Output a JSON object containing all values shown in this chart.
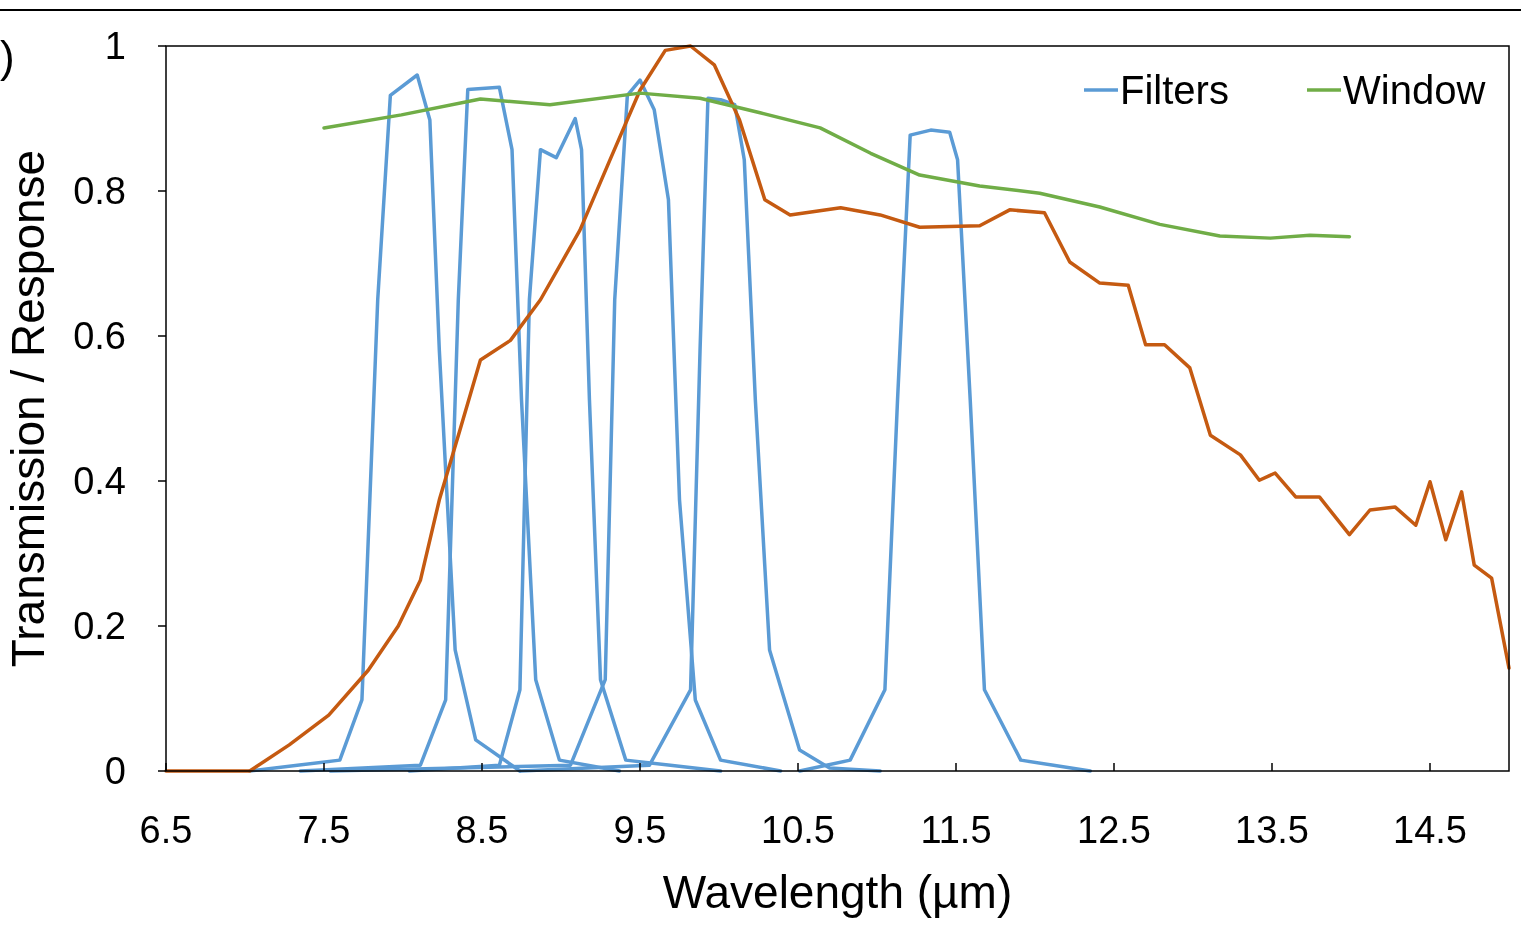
{
  "chart_data": {
    "type": "line",
    "xlabel": "Wavelength (µm)",
    "ylabel": "Transmission / Response",
    "annotations": [
      ")"
    ],
    "xlim": [
      6.5,
      15
    ],
    "xticks": [
      6.5,
      7.5,
      8.5,
      9.5,
      10.5,
      11.5,
      12.5,
      13.5,
      14.5
    ],
    "ylim": [
      0,
      1
    ],
    "yticks": [
      0,
      0.2,
      0.4,
      0.6,
      0.8,
      1
    ],
    "grid": false,
    "legend": "top right",
    "marker": "none",
    "line_style": "solid",
    "series": [
      {
        "name": "Filters",
        "color": "#5b9bd5",
        "x": [
          7.03,
          7.6,
          7.74,
          7.84,
          7.92,
          8.09,
          8.17,
          8.23,
          8.33,
          8.46,
          8.74
        ],
        "values": [
          0,
          0.015,
          0.098,
          0.65,
          0.932,
          0.96,
          0.898,
          0.58,
          0.167,
          0.043,
          0
        ]
      },
      {
        "color": "#5b9bd5",
        "x": [
          7.35,
          8.11,
          8.27,
          8.35,
          8.41,
          8.61,
          8.69,
          8.75,
          8.84,
          8.99,
          9.37
        ],
        "values": [
          0,
          0.008,
          0.098,
          0.65,
          0.94,
          0.943,
          0.857,
          0.512,
          0.126,
          0.015,
          0
        ]
      },
      {
        "color": "#5b9bd5",
        "x": [
          8.04,
          8.61,
          8.74,
          8.8,
          8.87,
          8.97,
          9.09,
          9.13,
          9.18,
          9.25,
          9.41,
          10.01
        ],
        "values": [
          0,
          0.008,
          0.112,
          0.65,
          0.857,
          0.846,
          0.9,
          0.857,
          0.512,
          0.126,
          0.015,
          0
        ]
      },
      {
        "color": "#5b9bd5",
        "x": [
          7.54,
          9.06,
          9.28,
          9.34,
          9.42,
          9.5,
          9.59,
          9.68,
          9.75,
          9.85,
          10.01,
          10.39
        ],
        "values": [
          0,
          0.008,
          0.126,
          0.65,
          0.932,
          0.953,
          0.912,
          0.788,
          0.374,
          0.098,
          0.015,
          0
        ]
      },
      {
        "color": "#5b9bd5",
        "x": [
          8.74,
          9.56,
          9.82,
          9.88,
          9.93,
          10.01,
          10.1,
          10.16,
          10.23,
          10.32,
          10.51,
          10.7,
          11.02
        ],
        "values": [
          0,
          0.008,
          0.112,
          0.58,
          0.928,
          0.926,
          0.919,
          0.843,
          0.512,
          0.167,
          0.029,
          0.004,
          0
        ]
      },
      {
        "color": "#5b9bd5",
        "x": [
          10.51,
          10.83,
          11.05,
          11.13,
          11.21,
          11.34,
          11.46,
          11.51,
          11.59,
          11.68,
          11.91,
          12.35
        ],
        "values": [
          0,
          0.015,
          0.112,
          0.512,
          0.877,
          0.884,
          0.881,
          0.843,
          0.512,
          0.112,
          0.015,
          0
        ]
      },
      {
        "color": "#c55a11",
        "x": [
          6.5,
          7.03,
          7.28,
          7.53,
          7.78,
          7.97,
          8.11,
          8.23,
          8.36,
          8.49,
          8.68,
          8.87,
          9.12,
          9.31,
          9.5,
          9.66,
          9.82,
          9.97,
          10.13,
          10.29,
          10.45,
          10.77,
          11.02,
          11.27,
          11.65,
          11.84,
          12.06,
          12.22,
          12.41,
          12.59,
          12.7,
          12.82,
          12.98,
          13.11,
          13.3,
          13.42,
          13.52,
          13.65,
          13.8,
          13.99,
          14.12,
          14.28,
          14.41,
          14.5,
          14.6,
          14.7,
          14.78,
          14.89,
          15
        ],
        "values": [
          0,
          0,
          0.036,
          0.077,
          0.139,
          0.2,
          0.263,
          0.374,
          0.47,
          0.567,
          0.594,
          0.65,
          0.746,
          0.843,
          0.939,
          0.994,
          1,
          0.974,
          0.898,
          0.788,
          0.767,
          0.777,
          0.767,
          0.75,
          0.752,
          0.774,
          0.77,
          0.702,
          0.673,
          0.67,
          0.588,
          0.588,
          0.556,
          0.463,
          0.436,
          0.401,
          0.411,
          0.378,
          0.378,
          0.326,
          0.36,
          0.364,
          0.339,
          0.399,
          0.319,
          0.385,
          0.284,
          0.266,
          0.142
        ]
      },
      {
        "name": "Window",
        "color": "#70ad47",
        "x": [
          7.5,
          7.99,
          8.49,
          8.93,
          9.5,
          9.88,
          10.26,
          10.64,
          10.96,
          11.27,
          11.65,
          12.03,
          12.41,
          12.79,
          13.17,
          13.49,
          13.74,
          13.99
        ],
        "values": [
          0.887,
          0.905,
          0.927,
          0.919,
          0.935,
          0.928,
          0.908,
          0.887,
          0.852,
          0.822,
          0.807,
          0.797,
          0.778,
          0.754,
          0.738,
          0.735,
          0.739,
          0.737
        ]
      }
    ]
  }
}
